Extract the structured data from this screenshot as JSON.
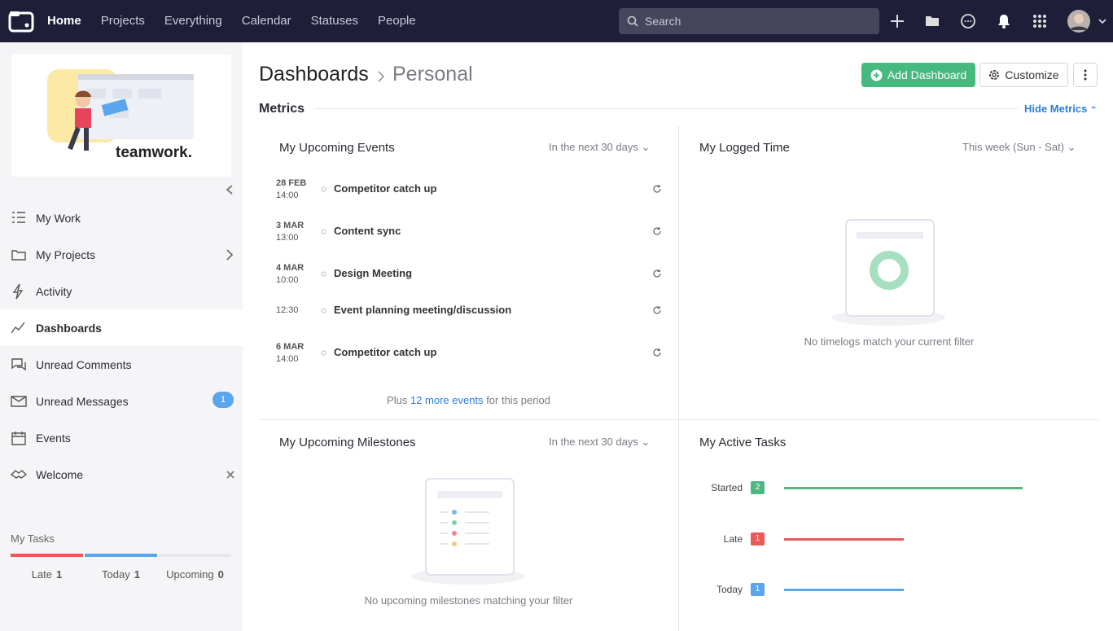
{
  "nav": {
    "items": [
      "Home",
      "Projects",
      "Everything",
      "Calendar",
      "Statuses",
      "People"
    ],
    "search": "Search"
  },
  "sidebar": {
    "brand": "teamwork.",
    "menu": [
      {
        "label": "My Work"
      },
      {
        "label": "My Projects"
      },
      {
        "label": "Activity"
      },
      {
        "label": "Dashboards"
      },
      {
        "label": "Unread Comments"
      },
      {
        "label": "Unread Messages",
        "badge": "1"
      },
      {
        "label": "Events"
      },
      {
        "label": "Welcome"
      }
    ],
    "tasks": {
      "title": "My Tasks",
      "items": [
        {
          "label": "Late",
          "count": "1"
        },
        {
          "label": "Today",
          "count": "1"
        },
        {
          "label": "Upcoming",
          "count": "0"
        }
      ]
    }
  },
  "header": {
    "crumb": "Dashboards",
    "page": "Personal",
    "add": "Add Dashboard",
    "customize": "Customize"
  },
  "metrics": {
    "title": "Metrics",
    "hide": "Hide Metrics"
  },
  "events": {
    "title": "My Upcoming Events",
    "filter": "In the next 30 days",
    "items": [
      {
        "date": "28 FEB",
        "time": "14:00",
        "name": "Competitor catch up"
      },
      {
        "date": "3 MAR",
        "time": "13:00",
        "name": "Content sync"
      },
      {
        "date": "4 MAR",
        "time": "10:00",
        "name": "Design Meeting"
      },
      {
        "time": "12:30",
        "name": "Event planning meeting/discussion"
      },
      {
        "date": "6 MAR",
        "time": "14:00",
        "name": "Competitor catch up"
      }
    ],
    "more": {
      "before": "Plus",
      "link": "12 more events",
      "after": "for this period"
    }
  },
  "logged": {
    "title": "My Logged Time",
    "filter": "This week (Sun - Sat)",
    "empty": "No timelogs match your current filter"
  },
  "milestones": {
    "title": "My Upcoming Milestones",
    "filter": "In the next 30 days",
    "empty": "No upcoming milestones matching your filter"
  },
  "tasks": {
    "title": "My Active Tasks",
    "rows": [
      {
        "label": "Started",
        "value": 2,
        "color": "#4cb87f"
      },
      {
        "label": "Late",
        "value": 1,
        "color": "#eb5a57"
      },
      {
        "label": "Today",
        "value": 1,
        "color": "#5aa6ec"
      }
    ]
  }
}
